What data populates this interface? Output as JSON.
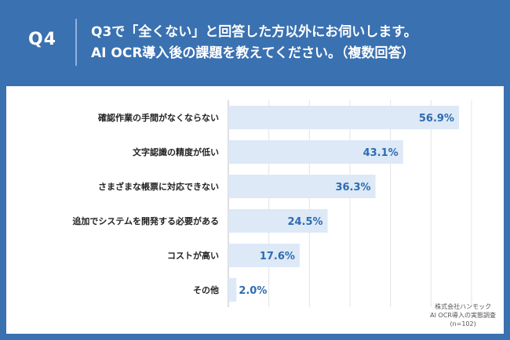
{
  "question": {
    "number": "Q4",
    "line1": "Q3で「全くない」と回答した方以外にお伺いします。",
    "line2": "AI OCR導入後の課題を教えてください。（複数回答）"
  },
  "source": {
    "line1": "株式会社ハンモック",
    "line2": "AI OCR導入の実態調査",
    "line3": "(n=102)"
  },
  "colors": {
    "background": "#3a71b1",
    "bar": "#dde9f7",
    "value_text": "#2e6bb0"
  },
  "chart_data": {
    "type": "bar",
    "orientation": "horizontal",
    "categories": [
      "確認作業の手間がなくならない",
      "文字認識の精度が低い",
      "さまざまな帳票に対応できない",
      "追加でシステムを開発する必要がある",
      "コストが高い",
      "その他"
    ],
    "values": [
      56.9,
      43.1,
      36.3,
      24.5,
      17.6,
      2.0
    ],
    "value_labels": [
      "56.9%",
      "43.1%",
      "36.3%",
      "24.5%",
      "17.6%",
      "2.0%"
    ],
    "xlim": [
      0,
      60
    ],
    "grid": true
  }
}
